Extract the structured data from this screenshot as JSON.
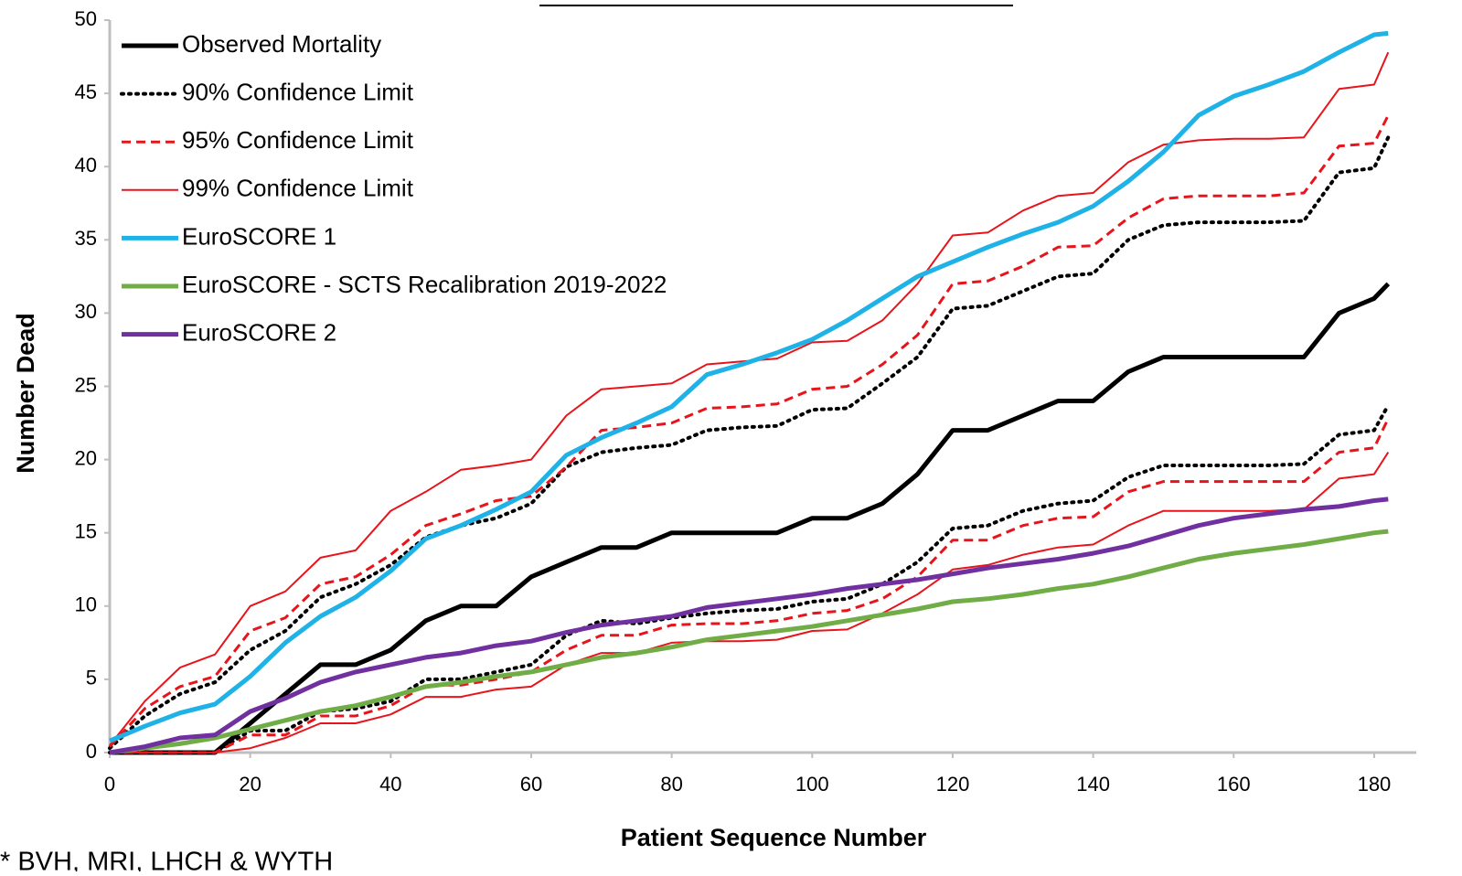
{
  "chart_data": {
    "type": "line",
    "xlabel": "Patient Sequence Number",
    "ylabel": "Number Dead",
    "annotation": "* BVH, MRI, LHCH & WYTH",
    "x": [
      0,
      5,
      10,
      15,
      20,
      25,
      30,
      35,
      40,
      45,
      50,
      55,
      60,
      65,
      70,
      75,
      80,
      85,
      90,
      95,
      100,
      105,
      110,
      115,
      120,
      125,
      130,
      135,
      140,
      145,
      150,
      155,
      160,
      165,
      170,
      175,
      180,
      182
    ],
    "xlim": [
      0,
      186
    ],
    "ylim": [
      0,
      50
    ],
    "xticks": [
      0,
      20,
      40,
      60,
      80,
      100,
      120,
      140,
      160,
      180
    ],
    "yticks": [
      0,
      5,
      10,
      15,
      20,
      25,
      30,
      35,
      40,
      45,
      50
    ],
    "grid": false,
    "legend": "upper left",
    "series": [
      {
        "name": "Observed Mortality",
        "color": "#000000",
        "width": 5,
        "dash": "solid",
        "values": [
          0,
          0,
          0,
          0,
          2,
          4,
          6,
          6,
          7,
          9,
          10,
          10,
          12,
          13,
          14,
          14,
          15,
          15,
          15,
          15,
          16,
          16,
          17,
          19,
          22,
          22,
          23,
          24,
          24,
          26,
          27,
          27,
          27,
          27,
          27,
          30,
          31,
          32
        ]
      },
      {
        "name": "90% Confidence Limit",
        "color": "#000000",
        "width": 4,
        "dash": "dotted",
        "values": [
          0.3,
          2.5,
          4,
          4.8,
          7,
          8.3,
          10.6,
          11.5,
          12.8,
          14.7,
          15.5,
          16,
          17,
          19.5,
          20.5,
          20.8,
          21,
          22,
          22.2,
          22.3,
          23.4,
          23.5,
          25.2,
          27,
          30.3,
          30.5,
          31.5,
          32.5,
          32.7,
          35,
          36,
          36.2,
          36.2,
          36.2,
          36.3,
          39.6,
          39.9,
          42
        ],
        "lower": [
          0,
          0,
          0,
          0,
          1.5,
          1.5,
          2.8,
          3,
          3.5,
          5,
          5,
          5.5,
          6,
          8,
          9,
          8.8,
          9.2,
          9.5,
          9.7,
          9.8,
          10.3,
          10.5,
          11.5,
          13,
          15.3,
          15.5,
          16.5,
          17,
          17.2,
          18.8,
          19.6,
          19.6,
          19.6,
          19.6,
          19.7,
          21.7,
          22,
          23.7
        ]
      },
      {
        "name": "95% Confidence Limit",
        "color": "#e8141b",
        "width": 3,
        "dash": "dashed",
        "values": [
          0.4,
          3,
          4.5,
          5.2,
          8.3,
          9.2,
          11.5,
          12,
          13.5,
          15.5,
          16.3,
          17.2,
          17.5,
          19.5,
          22,
          22.2,
          22.5,
          23.5,
          23.6,
          23.8,
          24.8,
          25,
          26.5,
          28.5,
          32,
          32.2,
          33.2,
          34.5,
          34.6,
          36.5,
          37.8,
          38,
          38,
          38,
          38.2,
          41.4,
          41.6,
          43.5
        ],
        "lower": [
          0,
          0,
          0,
          0,
          1.2,
          1.2,
          2.5,
          2.5,
          3.2,
          4.6,
          4.6,
          5,
          5.5,
          7,
          8,
          8,
          8.7,
          8.8,
          8.8,
          9,
          9.5,
          9.7,
          10.5,
          12,
          14.5,
          14.5,
          15.5,
          16,
          16.1,
          17.8,
          18.5,
          18.5,
          18.5,
          18.5,
          18.5,
          20.5,
          20.8,
          22.8
        ]
      },
      {
        "name": "99% Confidence Limit",
        "color": "#e8141b",
        "width": 2,
        "dash": "solid",
        "values": [
          0.5,
          3.5,
          5.8,
          6.7,
          10,
          11,
          13.3,
          13.8,
          16.5,
          17.8,
          19.3,
          19.6,
          20,
          23,
          24.8,
          25,
          25.2,
          26.5,
          26.7,
          26.9,
          28,
          28.1,
          29.5,
          32,
          35.3,
          35.5,
          37,
          38,
          38.2,
          40.3,
          41.5,
          41.8,
          41.9,
          41.9,
          42,
          45.3,
          45.6,
          47.8
        ],
        "lower": [
          0,
          0,
          0,
          0,
          0.3,
          1,
          2,
          2,
          2.6,
          3.8,
          3.8,
          4.3,
          4.5,
          6,
          6.8,
          6.8,
          7.5,
          7.6,
          7.6,
          7.7,
          8.3,
          8.4,
          9.5,
          10.8,
          12.5,
          12.8,
          13.5,
          14,
          14.2,
          15.5,
          16.5,
          16.5,
          16.5,
          16.5,
          16.6,
          18.7,
          19,
          20.5
        ]
      },
      {
        "name": "EuroSCORE 1",
        "color": "#1fb2e6",
        "width": 5,
        "dash": "solid",
        "values": [
          0.8,
          1.8,
          2.7,
          3.3,
          5.2,
          7.5,
          9.3,
          10.6,
          12.4,
          14.6,
          15.5,
          16.6,
          17.8,
          20.3,
          21.5,
          22.5,
          23.6,
          25.8,
          26.5,
          27.3,
          28.2,
          29.5,
          31,
          32.5,
          33.5,
          34.5,
          35.4,
          36.2,
          37.3,
          39,
          41,
          43.5,
          44.8,
          45.6,
          46.5,
          47.8,
          49,
          49.1
        ]
      },
      {
        "name": "EuroSCORE - SCTS Recalibration 2019-2022",
        "color": "#70ad47",
        "width": 5,
        "dash": "solid",
        "values": [
          0,
          0.3,
          0.6,
          1,
          1.6,
          2.2,
          2.8,
          3.2,
          3.8,
          4.5,
          4.8,
          5.2,
          5.5,
          6,
          6.5,
          6.8,
          7.2,
          7.7,
          8,
          8.3,
          8.6,
          9,
          9.4,
          9.8,
          10.3,
          10.5,
          10.8,
          11.2,
          11.5,
          12,
          12.6,
          13.2,
          13.6,
          13.9,
          14.2,
          14.6,
          15,
          15.1
        ]
      },
      {
        "name": "EuroSCORE 2",
        "color": "#7030a0",
        "width": 5,
        "dash": "solid",
        "values": [
          0,
          0.4,
          1,
          1.2,
          2.8,
          3.7,
          4.8,
          5.5,
          6,
          6.5,
          6.8,
          7.3,
          7.6,
          8.2,
          8.7,
          9,
          9.3,
          9.9,
          10.2,
          10.5,
          10.8,
          11.2,
          11.5,
          11.8,
          12.2,
          12.6,
          12.9,
          13.2,
          13.6,
          14.1,
          14.8,
          15.5,
          16,
          16.3,
          16.6,
          16.8,
          17.2,
          17.3
        ]
      }
    ]
  }
}
